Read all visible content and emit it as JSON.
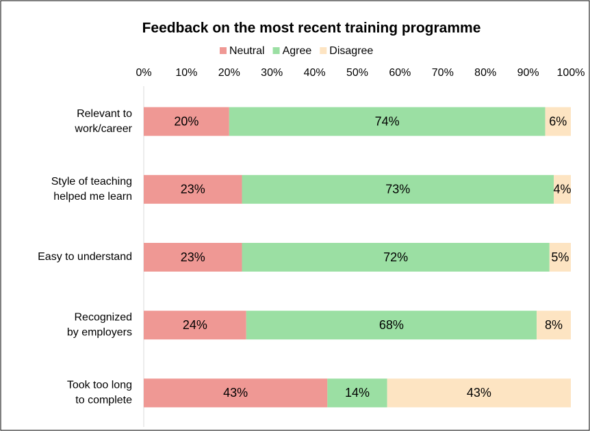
{
  "chart_data": {
    "type": "stacked-barh",
    "title": "Feedback on the most recent training programme",
    "categories": [
      [
        "Relevant to",
        "work/career"
      ],
      [
        "Style of teaching",
        "helped me learn"
      ],
      [
        "Easy to understand"
      ],
      [
        "Recognized",
        "by employers"
      ],
      [
        "Took too long",
        "to complete"
      ]
    ],
    "series": [
      {
        "name": "Neutral",
        "color": "#ef9894",
        "values": [
          20,
          23,
          23,
          24,
          43
        ],
        "value_labels": [
          "20%",
          "23%",
          "23%",
          "24%",
          "43%"
        ]
      },
      {
        "name": "Agree",
        "color": "#9bdfa3",
        "values": [
          74,
          73,
          72,
          68,
          14
        ],
        "value_labels": [
          "74%",
          "73%",
          "72%",
          "68%",
          "14%"
        ]
      },
      {
        "name": "Disagree",
        "color": "#fde4c2",
        "values": [
          6,
          4,
          5,
          8,
          43
        ],
        "value_labels": [
          "6%",
          "4%",
          "5%",
          "8%",
          "43%"
        ]
      }
    ],
    "xlim": [
      0,
      100
    ],
    "xticks": [
      {
        "value": 0,
        "label": "0%"
      },
      {
        "value": 10,
        "label": "10%"
      },
      {
        "value": 20,
        "label": "20%"
      },
      {
        "value": 30,
        "label": "30%"
      },
      {
        "value": 40,
        "label": "40%"
      },
      {
        "value": 50,
        "label": "50%"
      },
      {
        "value": 60,
        "label": "60%"
      },
      {
        "value": 70,
        "label": "70%"
      },
      {
        "value": 80,
        "label": "80%"
      },
      {
        "value": 90,
        "label": "90%"
      },
      {
        "value": 100,
        "label": "100%"
      }
    ],
    "legend": "top"
  }
}
